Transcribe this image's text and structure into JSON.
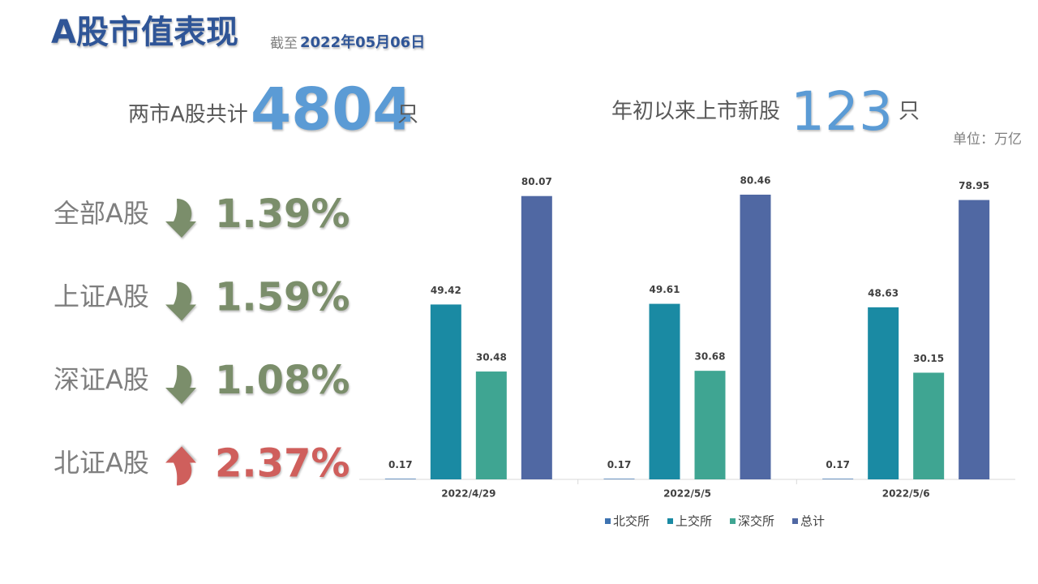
{
  "header": {
    "title": "A股市值表现",
    "date_prefix": "截至",
    "date": "2022年05月06日"
  },
  "stats": [
    {
      "label": "两市A股共计",
      "value": 4804,
      "unit": "只"
    },
    {
      "label": "年初以来上市新股",
      "value": 123,
      "unit": "只"
    }
  ],
  "unit_note": "单位：万亿",
  "changes": [
    {
      "name": "全部A股",
      "direction": "down",
      "value": "1.39%",
      "color": "#7b8e6b"
    },
    {
      "name": "上证A股",
      "direction": "down",
      "value": "1.59%",
      "color": "#7b8e6b"
    },
    {
      "name": "深证A股",
      "direction": "down",
      "value": "1.08%",
      "color": "#7b8e6b"
    },
    {
      "name": "北证A股",
      "direction": "up",
      "value": "2.37%",
      "color": "#cf5f5c"
    }
  ],
  "chart_data": {
    "type": "bar",
    "categories": [
      "2022/4/29",
      "2022/5/5",
      "2022/5/6"
    ],
    "series": [
      {
        "name": "北交所",
        "color": "#3e73b1",
        "values": [
          0.17,
          0.17,
          0.17
        ]
      },
      {
        "name": "上交所",
        "color": "#1a8aa3",
        "values": [
          49.42,
          49.61,
          48.63
        ]
      },
      {
        "name": "深交所",
        "color": "#3fa592",
        "values": [
          30.48,
          30.68,
          30.15
        ]
      },
      {
        "name": "总计",
        "color": "#5068a3",
        "values": [
          80.07,
          80.46,
          78.95
        ]
      }
    ]
  }
}
